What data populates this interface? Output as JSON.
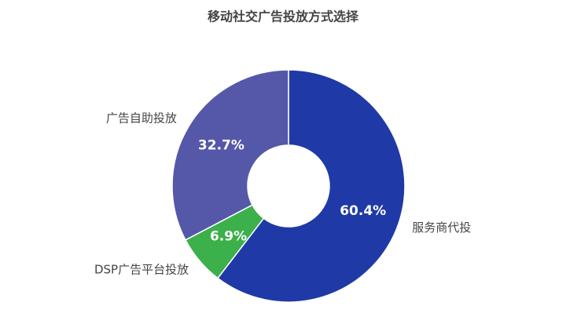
{
  "chart_data": {
    "type": "pie",
    "title": "移动社交广告投放方式选择",
    "categories": [
      "服务商代投",
      "DSP广告平台投放",
      "广告自助投放"
    ],
    "values": [
      60.4,
      6.9,
      32.7
    ],
    "value_labels": [
      "60.4%",
      "6.9%",
      "32.7%"
    ],
    "colors": [
      "#1f3aa6",
      "#3cb04a",
      "#5558a8"
    ],
    "donut": true
  }
}
